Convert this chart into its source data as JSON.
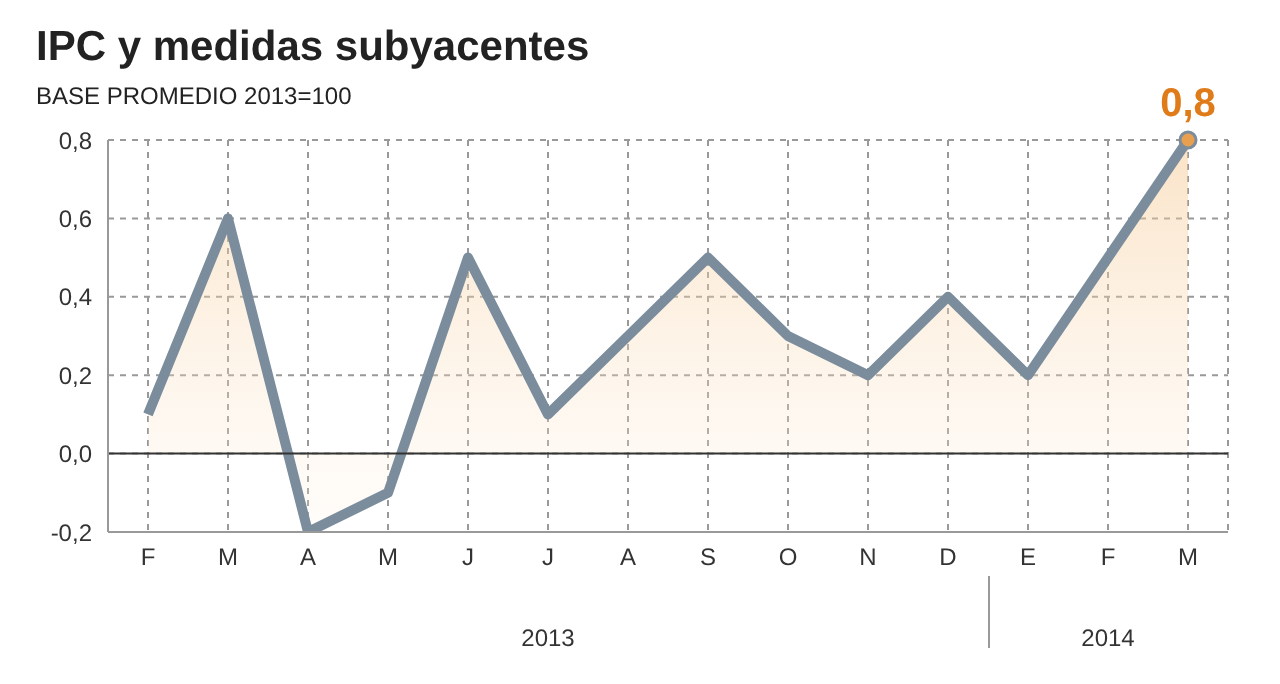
{
  "chart_data": {
    "type": "area",
    "title": "IPC y medidas subyacentes",
    "subtitle": "BASE PROMEDIO 2013=100",
    "categories": [
      "F",
      "M",
      "A",
      "M",
      "J",
      "J",
      "A",
      "S",
      "O",
      "N",
      "D",
      "E",
      "F",
      "M"
    ],
    "series": [
      {
        "color": "#7b8c9c",
        "values": [
          0.1,
          0.6,
          -0.2,
          -0.1,
          0.5,
          0.1,
          0.3,
          0.5,
          0.3,
          0.2,
          0.4,
          0.2,
          0.5,
          0.8
        ],
        "value_labels": [
          null,
          null,
          null,
          null,
          null,
          null,
          null,
          null,
          null,
          null,
          null,
          null,
          null,
          "0,8"
        ]
      }
    ],
    "ylim": [
      -0.2,
      0.8
    ],
    "yticks": [
      {
        "value": -0.2,
        "label": "-0,2"
      },
      {
        "value": 0,
        "label": "0,0"
      },
      {
        "value": 0.2,
        "label": "0,2"
      },
      {
        "value": 0.4,
        "label": "0,4"
      },
      {
        "value": 0.6,
        "label": "0,6"
      },
      {
        "value": 0.8,
        "label": "0,8"
      }
    ],
    "ref_lines": [
      {
        "axis": "y",
        "value": 0,
        "color": "#333333"
      }
    ],
    "grid": true,
    "marker": "none",
    "line_style": "solid",
    "annotations": [
      "2013",
      "2014"
    ]
  }
}
